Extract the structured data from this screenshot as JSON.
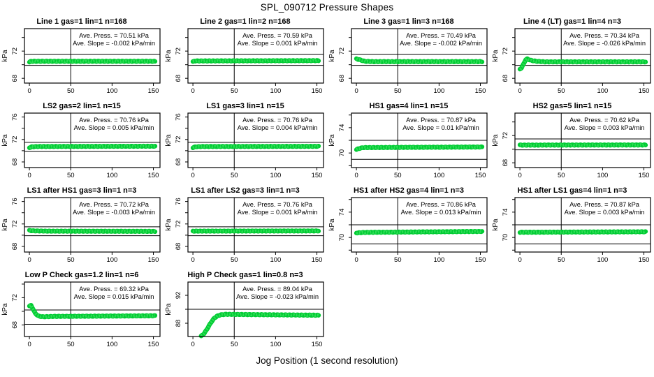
{
  "page_title": "SPL_090712  Pressure Shapes",
  "x_axis_label": "Jog Position (1 second resolution)",
  "colors": {
    "series_green": "#00CC33",
    "series_green_texture": "#2EDC55",
    "axis_black": "#000000",
    "background": "#FFFFFF"
  },
  "marker": "x-cross-dense-band",
  "layout_hints": {
    "grid_columns": 4,
    "xticks": [
      0,
      50,
      100,
      150
    ],
    "vline_x": 50,
    "xlim": [
      -6,
      158
    ],
    "y_axis_unit": "kPa",
    "minor_tick_step_kpa": 2
  },
  "chart_data": [
    {
      "type": "scatter",
      "title": "Line 1 gas=1 lin=1 n=168",
      "press_label": "Ave. Press. = 70.51 kPa",
      "slope_label": "Ave. Slope = -0.002 kPa/min",
      "ave_press_kpa": 70.51,
      "ave_slope_kpa_per_min": -0.002,
      "ylabel": "kPa",
      "ylim": [
        67.3,
        75.3
      ],
      "yticks_labeled": [
        68,
        72
      ],
      "hlines": [
        71.5,
        69.9
      ],
      "points": [
        [
          0,
          70.38
        ],
        [
          2,
          70.5
        ],
        [
          150,
          70.5
        ],
        [
          152,
          70.48
        ]
      ]
    },
    {
      "type": "scatter",
      "title": "Line 2 gas=1 lin=2 n=168",
      "press_label": "Ave. Press. = 70.59 kPa",
      "slope_label": "Ave. Slope = 0.001 kPa/min",
      "ave_press_kpa": 70.59,
      "ave_slope_kpa_per_min": 0.001,
      "ylabel": "kPa",
      "ylim": [
        67.3,
        75.3
      ],
      "yticks_labeled": [
        68,
        72
      ],
      "hlines": [
        71.5,
        69.9
      ],
      "points": [
        [
          0,
          70.42
        ],
        [
          2,
          70.55
        ],
        [
          152,
          70.6
        ]
      ]
    },
    {
      "type": "scatter",
      "title": "Line 3 gas=1 lin=3 n=168",
      "press_label": "Ave. Press. = 70.49 kPa",
      "slope_label": "Ave. Slope = -0.002 kPa/min",
      "ave_press_kpa": 70.49,
      "ave_slope_kpa_per_min": -0.002,
      "ylabel": "kPa",
      "ylim": [
        67.3,
        75.3
      ],
      "yticks_labeled": [
        68,
        72
      ],
      "hlines": [
        71.5,
        69.9
      ],
      "points": [
        [
          0,
          70.85
        ],
        [
          2,
          70.8
        ],
        [
          10,
          70.5
        ],
        [
          20,
          70.45
        ],
        [
          152,
          70.45
        ]
      ]
    },
    {
      "type": "scatter",
      "title": "Line 4 (LT) gas=1 lin=4 n=3",
      "press_label": "Ave. Press. = 70.34 kPa",
      "slope_label": "Ave. Slope = -0.026 kPa/min",
      "ave_press_kpa": 70.34,
      "ave_slope_kpa_per_min": -0.026,
      "ylabel": "kPa",
      "ylim": [
        67.3,
        75.3
      ],
      "yticks_labeled": [
        68,
        72
      ],
      "hlines": [
        71.5,
        69.9
      ],
      "points": [
        [
          0,
          69.35
        ],
        [
          2,
          69.55
        ],
        [
          4,
          70.0
        ],
        [
          7,
          70.75
        ],
        [
          9,
          70.85
        ],
        [
          13,
          70.65
        ],
        [
          20,
          70.5
        ],
        [
          30,
          70.42
        ],
        [
          152,
          70.42
        ]
      ]
    },
    {
      "type": "scatter",
      "title": "LS2 gas=2 lin=1 n=15",
      "press_label": "Ave. Press. = 70.76 kPa",
      "slope_label": "Ave. Slope = 0.005 kPa/min",
      "ave_press_kpa": 70.76,
      "ave_slope_kpa_per_min": 0.005,
      "ylabel": "kPa",
      "ylim": [
        67.0,
        76.7
      ],
      "yticks_labeled": [
        68,
        72,
        76
      ],
      "hlines": [
        71.5,
        69.9
      ],
      "points": [
        [
          0,
          70.55
        ],
        [
          3,
          70.7
        ],
        [
          10,
          70.75
        ],
        [
          152,
          70.8
        ]
      ]
    },
    {
      "type": "scatter",
      "title": "LS1 gas=3 lin=1 n=15",
      "press_label": "Ave. Press. = 70.76 kPa",
      "slope_label": "Ave. Slope = 0.004 kPa/min",
      "ave_press_kpa": 70.76,
      "ave_slope_kpa_per_min": 0.004,
      "ylabel": "kPa",
      "ylim": [
        67.0,
        76.7
      ],
      "yticks_labeled": [
        68,
        72,
        76
      ],
      "hlines": [
        71.5,
        69.9
      ],
      "points": [
        [
          0,
          70.55
        ],
        [
          3,
          70.7
        ],
        [
          10,
          70.75
        ],
        [
          152,
          70.78
        ]
      ]
    },
    {
      "type": "scatter",
      "title": "HS1 gas=4 lin=1 n=15",
      "press_label": "Ave. Press. = 70.87 kPa",
      "slope_label": "Ave. Slope = 0.01 kPa/min",
      "ave_press_kpa": 70.87,
      "ave_slope_kpa_per_min": 0.01,
      "ylabel": "kPa",
      "ylim": [
        67.7,
        76.3
      ],
      "yticks_labeled": [
        70,
        74
      ],
      "hlines": [
        72.0,
        69.0
      ],
      "points": [
        [
          0,
          70.55
        ],
        [
          3,
          70.7
        ],
        [
          8,
          70.85
        ],
        [
          152,
          70.95
        ]
      ]
    },
    {
      "type": "scatter",
      "title": "HS2 gas=5 lin=1 n=15",
      "press_label": "Ave. Press. = 70.62 kPa",
      "slope_label": "Ave. Slope = 0.003 kPa/min",
      "ave_press_kpa": 70.62,
      "ave_slope_kpa_per_min": 0.003,
      "ylabel": "kPa",
      "ylim": [
        67.3,
        75.3
      ],
      "yticks_labeled": [
        68,
        72
      ],
      "hlines": [
        71.5,
        69.9
      ],
      "points": [
        [
          0,
          70.6
        ],
        [
          152,
          70.62
        ]
      ]
    },
    {
      "type": "scatter",
      "title": "LS1 after HS1 gas=3 lin=1 n=3",
      "press_label": "Ave. Press. = 70.72 kPa",
      "slope_label": "Ave. Slope = -0.003 kPa/min",
      "ave_press_kpa": 70.72,
      "ave_slope_kpa_per_min": -0.003,
      "ylabel": "kPa",
      "ylim": [
        67.0,
        76.7
      ],
      "yticks_labeled": [
        68,
        72,
        76
      ],
      "hlines": [
        71.5,
        69.9
      ],
      "points": [
        [
          0,
          70.85
        ],
        [
          4,
          70.78
        ],
        [
          20,
          70.72
        ],
        [
          152,
          70.68
        ]
      ]
    },
    {
      "type": "scatter",
      "title": "LS1 after LS2 gas=3 lin=1 n=3",
      "press_label": "Ave. Press. = 70.76 kPa",
      "slope_label": "Ave. Slope = 0.001 kPa/min",
      "ave_press_kpa": 70.76,
      "ave_slope_kpa_per_min": 0.001,
      "ylabel": "kPa",
      "ylim": [
        67.0,
        76.7
      ],
      "yticks_labeled": [
        68,
        72,
        76
      ],
      "hlines": [
        71.5,
        69.9
      ],
      "points": [
        [
          0,
          70.72
        ],
        [
          152,
          70.76
        ]
      ]
    },
    {
      "type": "scatter",
      "title": "HS1 after HS2 gas=4 lin=1 n=3",
      "press_label": "Ave. Press. = 70.86 kPa",
      "slope_label": "Ave. Slope = 0.013 kPa/min",
      "ave_press_kpa": 70.86,
      "ave_slope_kpa_per_min": 0.013,
      "ylabel": "kPa",
      "ylim": [
        67.7,
        76.3
      ],
      "yticks_labeled": [
        70,
        74
      ],
      "hlines": [
        72.0,
        69.0
      ],
      "points": [
        [
          0,
          70.72
        ],
        [
          10,
          70.8
        ],
        [
          80,
          70.88
        ],
        [
          152,
          70.95
        ]
      ]
    },
    {
      "type": "scatter",
      "title": "HS1 after LS1 gas=4 lin=1 n=3",
      "press_label": "Ave. Press. = 70.87 kPa",
      "slope_label": "Ave. Slope = 0.003 kPa/min",
      "ave_press_kpa": 70.87,
      "ave_slope_kpa_per_min": 0.003,
      "ylabel": "kPa",
      "ylim": [
        67.7,
        76.3
      ],
      "yticks_labeled": [
        70,
        74
      ],
      "hlines": [
        72.0,
        69.0
      ],
      "points": [
        [
          0,
          70.82
        ],
        [
          152,
          70.9
        ]
      ]
    },
    {
      "type": "scatter",
      "title": "Low P Check gas=1.2 lin=1 n=6",
      "press_label": "Ave. Press. = 69.32 kPa",
      "slope_label": "Ave. Slope = 0.015 kPa/min",
      "ave_press_kpa": 69.32,
      "ave_slope_kpa_per_min": 0.015,
      "ylabel": "kPa",
      "ylim": [
        66.3,
        74.3
      ],
      "yticks_labeled": [
        68,
        72
      ],
      "hlines": [
        70.2,
        68.1
      ],
      "points": [
        [
          0,
          70.8
        ],
        [
          2,
          70.85
        ],
        [
          4,
          70.45
        ],
        [
          7,
          69.7
        ],
        [
          11,
          69.3
        ],
        [
          16,
          69.2
        ],
        [
          30,
          69.25
        ],
        [
          152,
          69.35
        ]
      ]
    },
    {
      "type": "scatter",
      "title": "High P Check gas=1 lin=0.8 n=3",
      "press_label": "Ave. Press. = 89.04 kPa",
      "slope_label": "Ave. Slope = -0.023 kPa/min",
      "ave_press_kpa": 89.04,
      "ave_slope_kpa_per_min": -0.023,
      "ylabel": "kPa",
      "ylim": [
        86.1,
        93.9
      ],
      "yticks_labeled": [
        88,
        92
      ],
      "hlines": [
        90.0
      ],
      "points": [
        [
          10,
          86.15
        ],
        [
          12,
          86.35
        ],
        [
          14,
          86.6
        ],
        [
          16,
          86.95
        ],
        [
          18,
          87.35
        ],
        [
          20,
          87.75
        ],
        [
          23,
          88.3
        ],
        [
          26,
          88.75
        ],
        [
          29,
          89.0
        ],
        [
          33,
          89.2
        ],
        [
          40,
          89.28
        ],
        [
          60,
          89.25
        ],
        [
          152,
          89.15
        ]
      ]
    }
  ]
}
